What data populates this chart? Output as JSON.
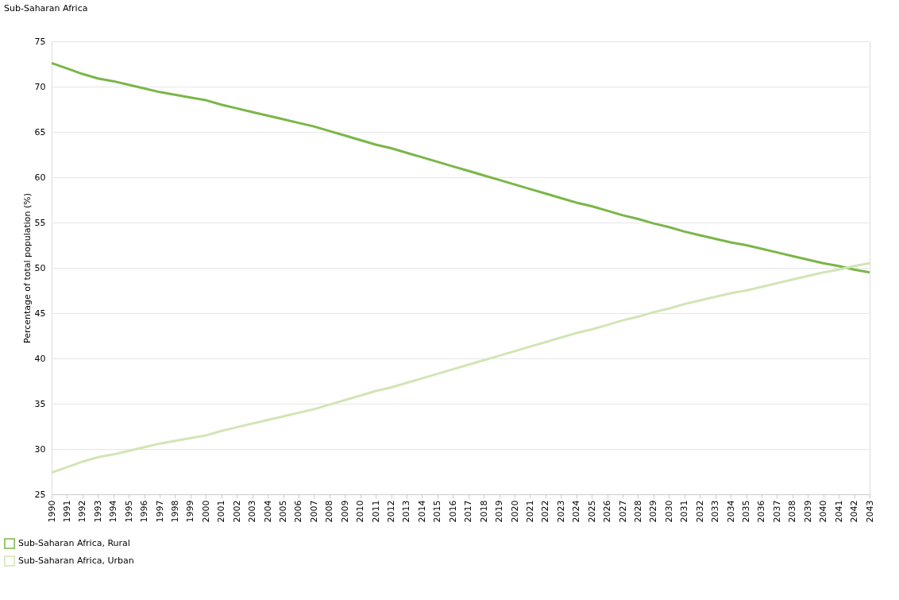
{
  "chart_data": {
    "type": "line",
    "title": "Sub-Saharan Africa",
    "ylabel": "Percentage of total population (%)",
    "categories": [
      "1990",
      "1991",
      "1992",
      "1993",
      "1994",
      "1995",
      "1996",
      "1997",
      "1998",
      "1999",
      "2000",
      "2001",
      "2002",
      "2003",
      "2004",
      "2005",
      "2006",
      "2007",
      "2008",
      "2009",
      "2010",
      "2011",
      "2012",
      "2013",
      "2014",
      "2015",
      "2016",
      "2017",
      "2018",
      "2019",
      "2020",
      "2021",
      "2022",
      "2023",
      "2024",
      "2025",
      "2026",
      "2027",
      "2028",
      "2029",
      "2030",
      "2031",
      "2032",
      "2033",
      "2034",
      "2035",
      "2036",
      "2037",
      "2038",
      "2039",
      "2040",
      "2041",
      "2042",
      "2043"
    ],
    "series": [
      {
        "name": "Sub-Saharan Africa,  Rural",
        "color": "#7ab648",
        "values": [
          72.6,
          72.0,
          71.4,
          70.9,
          70.6,
          70.2,
          69.8,
          69.4,
          69.1,
          68.8,
          68.5,
          68.0,
          67.6,
          67.2,
          66.8,
          66.4,
          66.0,
          65.6,
          65.1,
          64.6,
          64.1,
          63.6,
          63.2,
          62.7,
          62.2,
          61.7,
          61.2,
          60.7,
          60.2,
          59.7,
          59.2,
          58.7,
          58.2,
          57.7,
          57.2,
          56.8,
          56.3,
          55.8,
          55.4,
          54.9,
          54.5,
          54.0,
          53.6,
          53.2,
          52.8,
          52.5,
          52.1,
          51.7,
          51.3,
          50.9,
          50.5,
          50.2,
          49.8,
          49.5
        ]
      },
      {
        "name": "Sub-Saharan Africa,  Urban",
        "color": "#d2e5b5",
        "values": [
          27.4,
          28.0,
          28.6,
          29.1,
          29.4,
          29.8,
          30.2,
          30.6,
          30.9,
          31.2,
          31.5,
          32.0,
          32.4,
          32.8,
          33.2,
          33.6,
          34.0,
          34.4,
          34.9,
          35.4,
          35.9,
          36.4,
          36.8,
          37.3,
          37.8,
          38.3,
          38.8,
          39.3,
          39.8,
          40.3,
          40.8,
          41.3,
          41.8,
          42.3,
          42.8,
          43.2,
          43.7,
          44.2,
          44.6,
          45.1,
          45.5,
          46.0,
          46.4,
          46.8,
          47.2,
          47.5,
          47.9,
          48.3,
          48.7,
          49.1,
          49.5,
          49.8,
          50.2,
          50.5
        ]
      }
    ],
    "ylim": [
      25,
      75
    ],
    "yticks": [
      25,
      30,
      35,
      40,
      45,
      50,
      55,
      60,
      65,
      70,
      75
    ],
    "grid": "y",
    "legend": "bottom left",
    "marker": "none",
    "line_style": "solid"
  }
}
